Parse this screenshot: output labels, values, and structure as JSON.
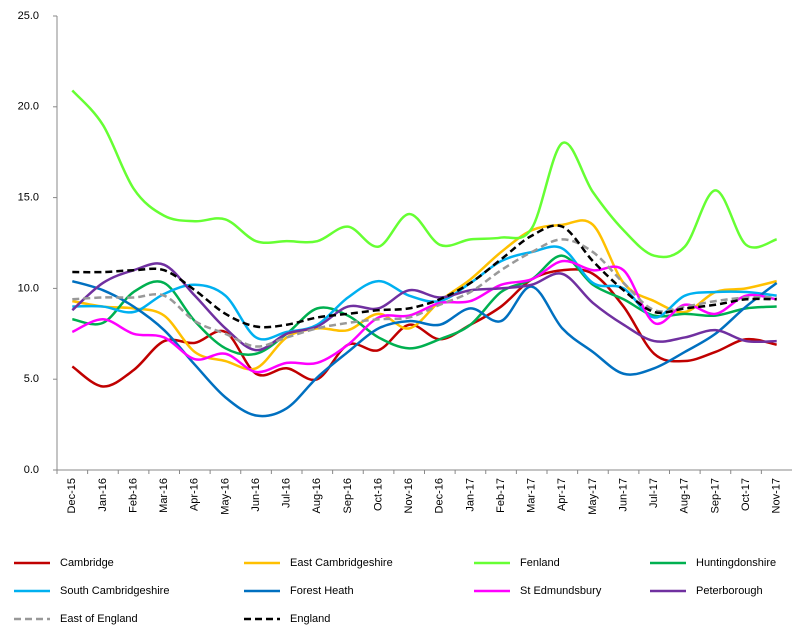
{
  "chart_data": {
    "type": "line",
    "categories": [
      "Dec-15",
      "Jan-16",
      "Feb-16",
      "Mar-16",
      "Apr-16",
      "May-16",
      "Jun-16",
      "Jul-16",
      "Aug-16",
      "Sep-16",
      "Oct-16",
      "Nov-16",
      "Dec-16",
      "Jan-17",
      "Feb-17",
      "Mar-17",
      "Apr-17",
      "May-17",
      "Jun-17",
      "Jul-17",
      "Aug-17",
      "Sep-17",
      "Oct-17",
      "Nov-17"
    ],
    "ylim": [
      0,
      25
    ],
    "yticks": [
      {
        "value": 0,
        "label": "0.0"
      },
      {
        "value": 5,
        "label": "5.0"
      },
      {
        "value": 10,
        "label": "10.0"
      },
      {
        "value": 15,
        "label": "15.0"
      },
      {
        "value": 20,
        "label": "20.0"
      },
      {
        "value": 25,
        "label": "25.0"
      }
    ],
    "grid": false,
    "legend": "bottom",
    "series": [
      {
        "name": "Cambridge",
        "color": "#c00000",
        "style": "solid",
        "values": [
          5.7,
          4.6,
          5.5,
          7.1,
          7.0,
          7.6,
          5.3,
          5.6,
          5.0,
          6.9,
          6.6,
          8.0,
          7.2,
          8.0,
          9.0,
          10.5,
          11.0,
          10.8,
          9.0,
          6.4,
          6.0,
          6.5,
          7.2,
          6.9
        ]
      },
      {
        "name": "East Cambridgeshire",
        "color": "#ffc000",
        "style": "solid",
        "values": [
          9.3,
          9.0,
          8.9,
          8.5,
          6.5,
          6.0,
          5.6,
          7.3,
          7.8,
          7.7,
          8.6,
          7.8,
          9.3,
          10.5,
          12.0,
          13.2,
          13.5,
          13.5,
          10.3,
          9.3,
          8.7,
          9.8,
          10.0,
          10.4
        ]
      },
      {
        "name": "Fenland",
        "color": "#66ff33",
        "style": "solid",
        "values": [
          20.9,
          19.0,
          15.5,
          14.0,
          13.7,
          13.8,
          12.6,
          12.6,
          12.6,
          13.4,
          12.3,
          14.1,
          12.4,
          12.7,
          12.8,
          13.3,
          18.0,
          15.3,
          13.2,
          11.8,
          12.3,
          15.4,
          12.4,
          12.7
        ]
      },
      {
        "name": "Huntingdonshire",
        "color": "#00b050",
        "style": "solid",
        "values": [
          8.3,
          8.1,
          9.8,
          10.3,
          8.2,
          6.7,
          6.4,
          7.5,
          8.9,
          8.5,
          7.3,
          6.7,
          7.2,
          8.0,
          9.8,
          10.5,
          11.8,
          10.2,
          9.4,
          8.5,
          8.6,
          8.5,
          8.9,
          9.0
        ]
      },
      {
        "name": "South Cambridgeshire",
        "color": "#00b0f0",
        "style": "solid",
        "values": [
          9.0,
          9.0,
          8.7,
          9.7,
          10.2,
          9.6,
          7.3,
          7.6,
          8.0,
          9.5,
          10.4,
          9.6,
          9.3,
          10.3,
          11.5,
          12.0,
          12.2,
          10.3,
          10.0,
          8.4,
          9.6,
          9.8,
          9.8,
          9.6
        ]
      },
      {
        "name": "Forest Heath",
        "color": "#0070c0",
        "style": "solid",
        "values": [
          10.4,
          9.9,
          9.0,
          7.7,
          5.8,
          4.0,
          3.0,
          3.4,
          5.1,
          6.5,
          7.8,
          8.2,
          8.0,
          8.9,
          8.2,
          10.1,
          7.8,
          6.5,
          5.3,
          5.6,
          6.5,
          7.5,
          9.0,
          10.3
        ]
      },
      {
        "name": "St Edmundsbury",
        "color": "#ff00ff",
        "style": "solid",
        "values": [
          7.6,
          8.3,
          7.5,
          7.3,
          6.1,
          6.4,
          5.4,
          5.9,
          5.9,
          6.9,
          8.4,
          8.5,
          9.2,
          9.3,
          10.2,
          10.5,
          11.5,
          11.0,
          11.0,
          8.1,
          9.1,
          8.6,
          9.6,
          9.4
        ]
      },
      {
        "name": "Peterborough",
        "color": "#7030a0",
        "style": "solid",
        "values": [
          8.8,
          10.3,
          11.0,
          11.3,
          9.6,
          7.8,
          6.6,
          7.5,
          7.9,
          9.0,
          8.9,
          9.9,
          9.5,
          9.9,
          10.0,
          10.2,
          10.8,
          9.2,
          8.0,
          7.1,
          7.3,
          7.7,
          7.1,
          7.1
        ]
      },
      {
        "name": "East of England",
        "color": "#999999",
        "style": "dashed",
        "values": [
          9.4,
          9.5,
          9.5,
          9.6,
          8.2,
          7.5,
          6.8,
          7.3,
          7.8,
          8.1,
          8.3,
          8.4,
          9.1,
          9.8,
          11.0,
          12.0,
          12.7,
          12.0,
          10.3,
          8.8,
          9.0,
          9.3,
          9.5,
          9.5
        ]
      },
      {
        "name": "England",
        "color": "#000000",
        "style": "dashed",
        "values": [
          10.9,
          10.9,
          11.0,
          11.0,
          9.9,
          8.6,
          7.9,
          8.0,
          8.4,
          8.6,
          8.8,
          8.9,
          9.4,
          10.3,
          11.6,
          12.9,
          13.4,
          11.5,
          9.9,
          8.7,
          8.9,
          9.1,
          9.4,
          9.4
        ]
      }
    ]
  }
}
